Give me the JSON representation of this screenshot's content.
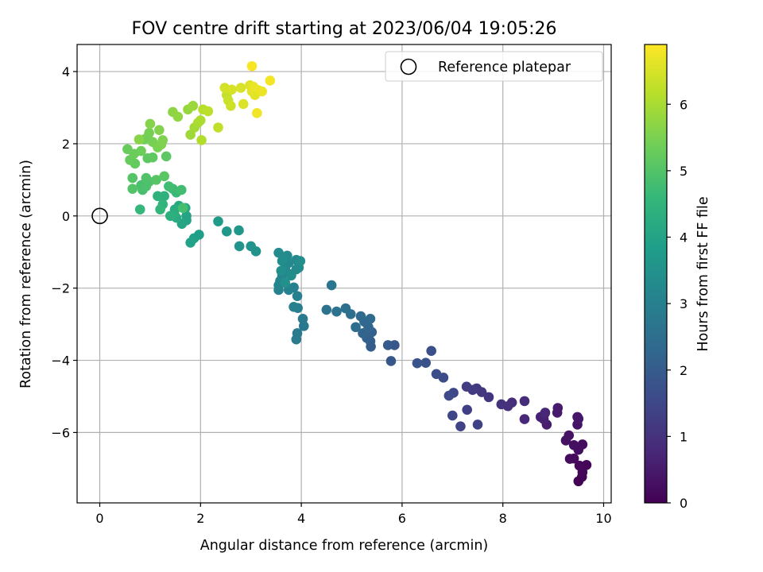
{
  "chart_data": {
    "type": "scatter",
    "title": "FOV centre drift starting at 2023/06/04 19:05:26",
    "xlabel": "Angular distance from reference (arcmin)",
    "ylabel": "Rotation from reference (arcmin)",
    "xlim": [
      -0.45,
      10.15
    ],
    "ylim": [
      -7.95,
      4.75
    ],
    "xticks": [
      0,
      2,
      4,
      6,
      8,
      10
    ],
    "yticks": [
      -6,
      -4,
      -2,
      0,
      2,
      4
    ],
    "xtick_labels": [
      "0",
      "2",
      "4",
      "6",
      "8",
      "10"
    ],
    "ytick_labels": [
      "−6",
      "−4",
      "−2",
      "0",
      "2",
      "4"
    ],
    "grid": true,
    "legend": {
      "position": "top-right",
      "entries": [
        "Reference platepar"
      ]
    },
    "reference_point": {
      "x": 0,
      "y": 0,
      "label": "Reference platepar",
      "marker": "open-circle"
    },
    "colorbar": {
      "label": "Hours from first FF file",
      "colormap": "viridis",
      "range": [
        0,
        6.9
      ],
      "ticks": [
        0,
        1,
        2,
        3,
        4,
        5,
        6
      ],
      "tick_labels": [
        "0",
        "1",
        "2",
        "3",
        "4",
        "5",
        "6"
      ]
    },
    "color_stops": [
      "#440154",
      "#482878",
      "#3e4989",
      "#31688e",
      "#26828e",
      "#1f9e89",
      "#35b779",
      "#6ece58",
      "#b5de2b",
      "#fde725"
    ],
    "points": [
      [
        9.5,
        -7.35,
        0.02
      ],
      [
        9.57,
        -7.23,
        0.05
      ],
      [
        9.66,
        -6.9,
        0.08
      ],
      [
        9.58,
        -7.1,
        0.11
      ],
      [
        9.52,
        -6.92,
        0.14
      ],
      [
        9.41,
        -6.72,
        0.17
      ],
      [
        9.33,
        -6.73,
        0.2
      ],
      [
        9.58,
        -6.33,
        0.23
      ],
      [
        9.5,
        -6.48,
        0.26
      ],
      [
        9.41,
        -6.35,
        0.29
      ],
      [
        9.25,
        -6.22,
        0.32
      ],
      [
        9.31,
        -6.08,
        0.35
      ],
      [
        9.48,
        -5.78,
        0.38
      ],
      [
        9.5,
        -5.62,
        0.41
      ],
      [
        9.48,
        -5.57,
        0.44
      ],
      [
        9.08,
        -5.45,
        0.47
      ],
      [
        9.09,
        -5.32,
        0.5
      ],
      [
        8.87,
        -5.78,
        0.55
      ],
      [
        8.81,
        -5.63,
        0.6
      ],
      [
        8.75,
        -5.57,
        0.65
      ],
      [
        8.83,
        -5.48,
        0.7
      ],
      [
        8.84,
        -5.45,
        0.75
      ],
      [
        8.43,
        -5.63,
        0.8
      ],
      [
        8.43,
        -5.13,
        0.85
      ],
      [
        8.18,
        -5.17,
        0.9
      ],
      [
        8.1,
        -5.27,
        0.95
      ],
      [
        7.97,
        -5.22,
        1.0
      ],
      [
        7.72,
        -5.02,
        1.05
      ],
      [
        7.58,
        -4.88,
        1.1
      ],
      [
        7.48,
        -4.78,
        1.15
      ],
      [
        7.4,
        -4.82,
        1.2
      ],
      [
        7.28,
        -4.73,
        1.25
      ],
      [
        7.29,
        -5.37,
        1.3
      ],
      [
        7.5,
        -5.78,
        1.35
      ],
      [
        7.16,
        -5.83,
        1.4
      ],
      [
        7.0,
        -5.53,
        1.45
      ],
      [
        7.02,
        -4.9,
        1.5
      ],
      [
        6.93,
        -4.98,
        1.55
      ],
      [
        6.82,
        -4.48,
        1.6
      ],
      [
        6.68,
        -4.38,
        1.65
      ],
      [
        6.58,
        -3.74,
        1.7
      ],
      [
        6.47,
        -4.07,
        1.75
      ],
      [
        6.3,
        -4.08,
        1.8
      ],
      [
        5.78,
        -4.02,
        1.85
      ],
      [
        5.85,
        -3.58,
        1.9
      ],
      [
        5.72,
        -3.58,
        1.95
      ],
      [
        5.38,
        -3.62,
        2.0
      ],
      [
        5.37,
        -3.47,
        2.05
      ],
      [
        5.3,
        -3.38,
        2.1
      ],
      [
        5.4,
        -3.22,
        2.15
      ],
      [
        5.22,
        -3.25,
        2.2
      ],
      [
        5.33,
        -3.08,
        2.25
      ],
      [
        5.25,
        -2.93,
        2.3
      ],
      [
        5.37,
        -2.85,
        2.35
      ],
      [
        5.18,
        -2.78,
        2.4
      ],
      [
        5.08,
        -3.08,
        2.45
      ],
      [
        4.98,
        -2.72,
        2.5
      ],
      [
        4.88,
        -2.56,
        2.55
      ],
      [
        4.7,
        -2.65,
        2.6
      ],
      [
        4.5,
        -2.6,
        2.65
      ],
      [
        4.6,
        -1.92,
        2.7
      ],
      [
        4.05,
        -3.05,
        2.75
      ],
      [
        4.03,
        -2.85,
        2.8
      ],
      [
        3.92,
        -3.25,
        2.85
      ],
      [
        3.9,
        -3.42,
        2.9
      ],
      [
        3.93,
        -2.55,
        2.95
      ],
      [
        3.85,
        -2.52,
        3.0
      ],
      [
        3.92,
        -2.22,
        3.02
      ],
      [
        3.85,
        -1.98,
        3.05
      ],
      [
        3.75,
        -2.05,
        3.08
      ],
      [
        3.55,
        -2.05,
        3.1
      ],
      [
        3.55,
        -1.92,
        3.12
      ],
      [
        3.58,
        -1.8,
        3.14
      ],
      [
        3.62,
        -1.65,
        3.16
      ],
      [
        3.7,
        -1.55,
        3.18
      ],
      [
        3.8,
        -1.62,
        3.2
      ],
      [
        3.68,
        -1.42,
        3.22
      ],
      [
        3.9,
        -1.48,
        3.24
      ],
      [
        3.75,
        -1.3,
        3.26
      ],
      [
        3.9,
        -1.22,
        3.28
      ],
      [
        3.95,
        -1.43,
        3.3
      ],
      [
        3.72,
        -1.1,
        3.32
      ],
      [
        3.55,
        -1.02,
        3.34
      ],
      [
        3.62,
        -1.25,
        3.36
      ],
      [
        3.8,
        -1.65,
        3.38
      ],
      [
        3.98,
        -1.25,
        3.4
      ],
      [
        3.6,
        -1.52,
        3.42
      ],
      [
        3.68,
        -1.85,
        3.44
      ],
      [
        3.1,
        -0.98,
        3.5
      ],
      [
        3.0,
        -0.84,
        3.55
      ],
      [
        2.77,
        -0.84,
        3.6
      ],
      [
        2.76,
        -0.4,
        3.65
      ],
      [
        2.52,
        -0.43,
        3.7
      ],
      [
        2.35,
        -0.15,
        3.75
      ],
      [
        1.97,
        -0.52,
        3.85
      ],
      [
        1.87,
        -0.62,
        3.9
      ],
      [
        1.8,
        -0.74,
        3.95
      ],
      [
        1.72,
        -0.12,
        4.0
      ],
      [
        1.72,
        0.0,
        4.03
      ],
      [
        1.63,
        -0.22,
        4.06
      ],
      [
        1.7,
        0.22,
        4.1
      ],
      [
        1.57,
        0.28,
        4.15
      ],
      [
        1.52,
        -0.05,
        4.2
      ],
      [
        1.49,
        0.18,
        4.25
      ],
      [
        1.48,
        0.05,
        4.3
      ],
      [
        1.4,
        0.0,
        4.35
      ],
      [
        1.28,
        0.55,
        4.4
      ],
      [
        1.15,
        0.55,
        4.45
      ],
      [
        1.25,
        0.32,
        4.5
      ],
      [
        1.2,
        0.18,
        4.55
      ],
      [
        0.8,
        0.18,
        4.6
      ],
      [
        1.52,
        0.65,
        4.65
      ],
      [
        1.45,
        0.75,
        4.7
      ],
      [
        1.37,
        0.82,
        4.75
      ],
      [
        1.62,
        0.72,
        4.78
      ],
      [
        1.65,
        0.22,
        4.82
      ],
      [
        0.85,
        0.72,
        4.85
      ],
      [
        0.82,
        0.85,
        4.88
      ],
      [
        0.92,
        0.82,
        4.91
      ],
      [
        0.98,
        0.95,
        4.94
      ],
      [
        0.92,
        1.05,
        4.97
      ],
      [
        0.65,
        0.75,
        5.0
      ],
      [
        0.65,
        1.05,
        5.03
      ],
      [
        1.12,
        1.0,
        5.06
      ],
      [
        1.28,
        1.1,
        5.09
      ],
      [
        1.32,
        1.65,
        5.12
      ],
      [
        1.05,
        1.62,
        5.15
      ],
      [
        0.95,
        1.6,
        5.18
      ],
      [
        0.7,
        1.45,
        5.22
      ],
      [
        0.6,
        1.55,
        5.25
      ],
      [
        0.55,
        1.85,
        5.28
      ],
      [
        0.68,
        1.72,
        5.31
      ],
      [
        0.82,
        1.8,
        5.34
      ],
      [
        0.88,
        2.12,
        5.37
      ],
      [
        0.95,
        2.18,
        5.4
      ],
      [
        0.98,
        2.3,
        5.43
      ],
      [
        1.05,
        2.05,
        5.46
      ],
      [
        1.15,
        1.9,
        5.49
      ],
      [
        1.22,
        1.98,
        5.52
      ],
      [
        1.25,
        2.1,
        5.55
      ],
      [
        1.18,
        2.38,
        5.58
      ],
      [
        1.0,
        2.55,
        5.61
      ],
      [
        0.78,
        2.12,
        5.64
      ],
      [
        1.45,
        2.88,
        5.7
      ],
      [
        1.55,
        2.75,
        5.75
      ],
      [
        1.75,
        2.95,
        5.8
      ],
      [
        1.85,
        3.05,
        5.85
      ],
      [
        1.8,
        2.25,
        5.9
      ],
      [
        1.88,
        2.45,
        5.95
      ],
      [
        1.95,
        2.58,
        6.0
      ],
      [
        2.0,
        2.65,
        6.05
      ],
      [
        2.02,
        2.1,
        6.1
      ],
      [
        2.05,
        2.95,
        6.15
      ],
      [
        2.15,
        2.9,
        6.2
      ],
      [
        2.35,
        2.45,
        6.25
      ],
      [
        2.52,
        3.35,
        6.3
      ],
      [
        2.55,
        3.2,
        6.35
      ],
      [
        2.6,
        3.05,
        6.4
      ],
      [
        2.48,
        3.55,
        6.45
      ],
      [
        2.62,
        3.5,
        6.48
      ],
      [
        2.8,
        3.55,
        6.51
      ],
      [
        2.85,
        3.1,
        6.54
      ],
      [
        2.98,
        3.62,
        6.57
      ],
      [
        3.02,
        3.45,
        6.6
      ],
      [
        3.08,
        3.35,
        6.63
      ],
      [
        3.15,
        3.48,
        6.66
      ],
      [
        3.05,
        3.58,
        6.69
      ],
      [
        3.22,
        3.45,
        6.72
      ],
      [
        3.12,
        2.85,
        6.76
      ],
      [
        3.38,
        3.75,
        6.8
      ],
      [
        3.02,
        4.15,
        6.85
      ]
    ]
  }
}
